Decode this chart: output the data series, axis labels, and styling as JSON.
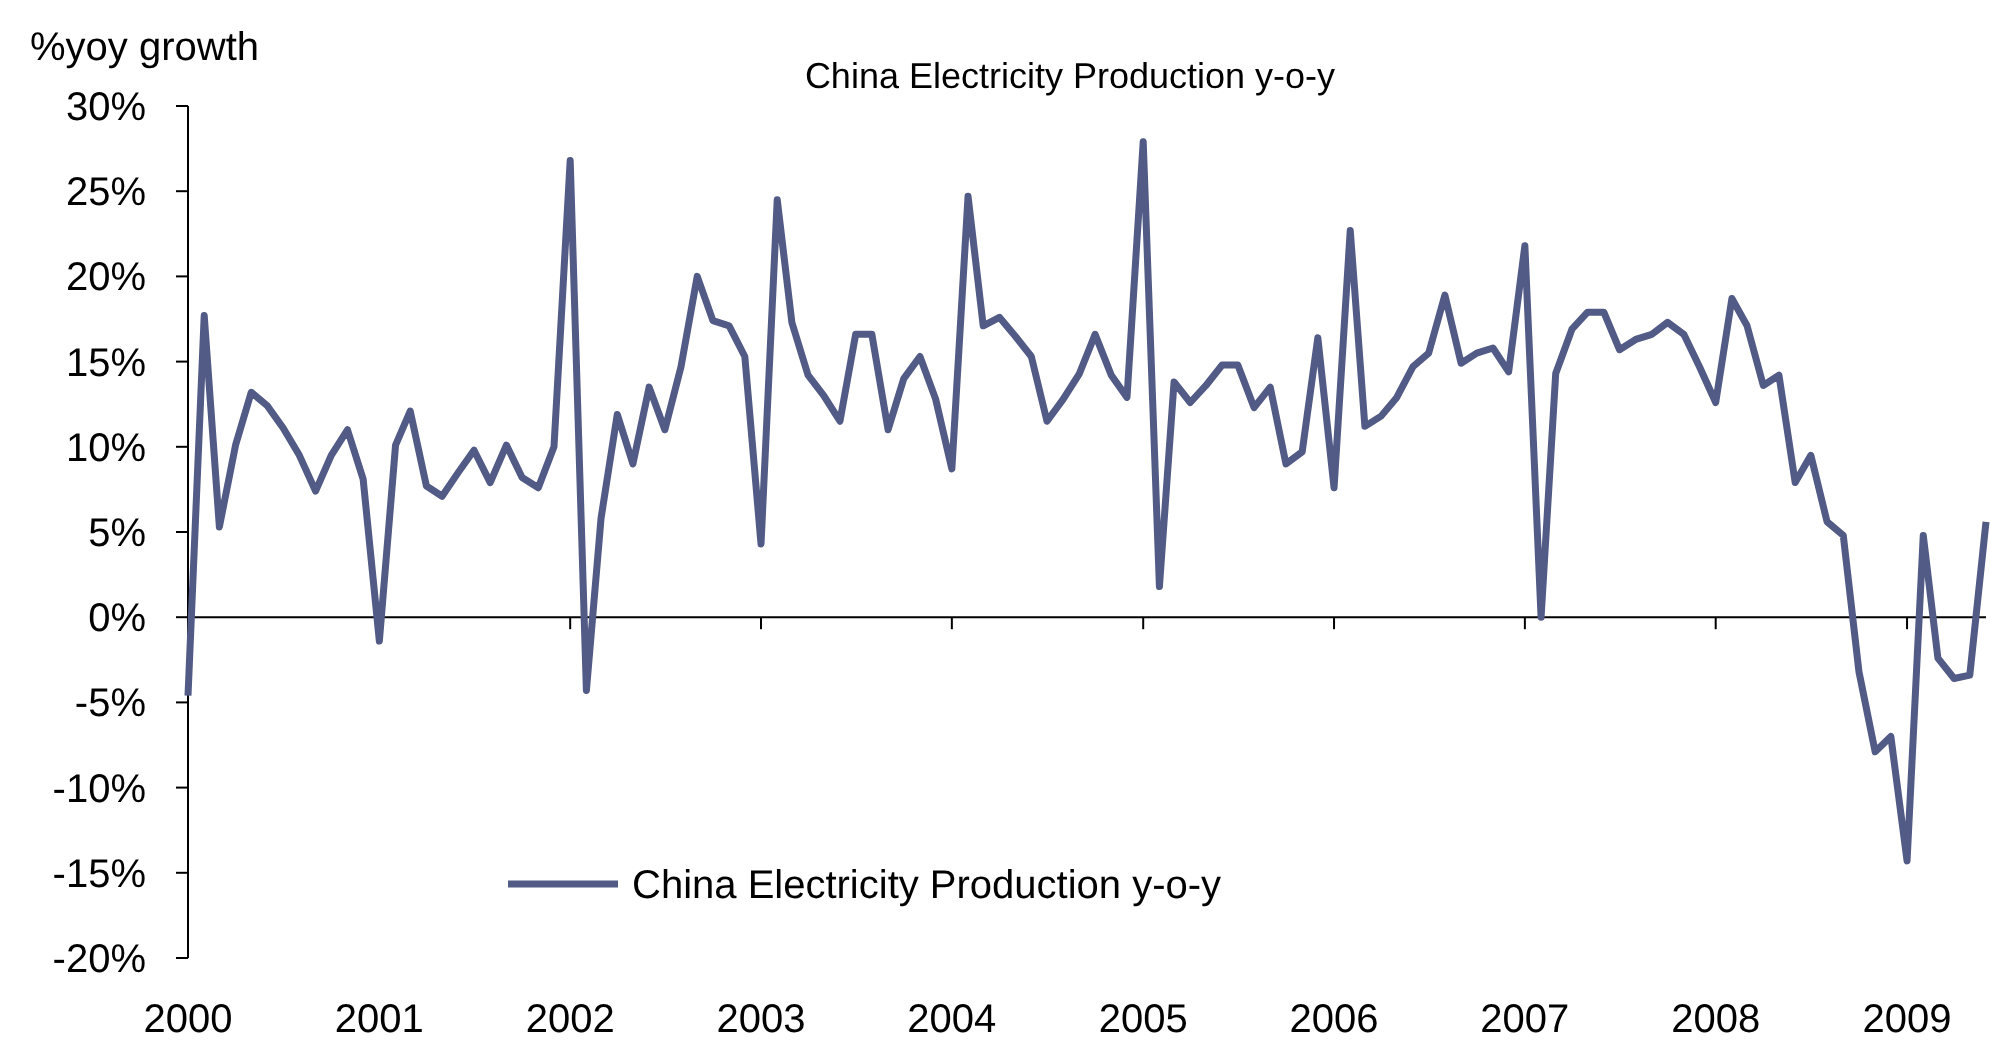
{
  "chart_data": {
    "type": "line",
    "title": "China Electricity Production y-o-y",
    "ylabel": "%yoy growth",
    "xlim": [
      "2000-01",
      "2009-06"
    ],
    "xticks": [
      {
        "value": "2000-01",
        "label": "2000"
      },
      {
        "value": "2001-01",
        "label": "2001"
      },
      {
        "value": "2002-01",
        "label": "2002"
      },
      {
        "value": "2003-01",
        "label": "2003"
      },
      {
        "value": "2004-01",
        "label": "2004"
      },
      {
        "value": "2005-01",
        "label": "2005"
      },
      {
        "value": "2006-01",
        "label": "2006"
      },
      {
        "value": "2007-01",
        "label": "2007"
      },
      {
        "value": "2008-01",
        "label": "2008"
      },
      {
        "value": "2009-01",
        "label": "2009"
      }
    ],
    "ylim": [
      -20,
      30
    ],
    "yticks": [
      {
        "value": -20,
        "label": "-20%"
      },
      {
        "value": -15,
        "label": "-15%"
      },
      {
        "value": -10,
        "label": "-10%"
      },
      {
        "value": -5,
        "label": "-5%"
      },
      {
        "value": 0,
        "label": "0%"
      },
      {
        "value": 5,
        "label": "5%"
      },
      {
        "value": 10,
        "label": "10%"
      },
      {
        "value": 15,
        "label": "15%"
      },
      {
        "value": 20,
        "label": "20%"
      },
      {
        "value": 25,
        "label": "25%"
      },
      {
        "value": 30,
        "label": "30%"
      }
    ],
    "legend": "bottom left",
    "marker": "none",
    "line_style": "solid",
    "x": [
      "2000-01",
      "2000-02",
      "2000-03",
      "2000-04",
      "2000-05",
      "2000-06",
      "2000-07",
      "2000-08",
      "2000-09",
      "2000-10",
      "2000-11",
      "2000-12",
      "2001-01",
      "2001-02",
      "2001-03",
      "2001-04",
      "2001-05",
      "2001-06",
      "2001-07",
      "2001-08",
      "2001-09",
      "2001-10",
      "2001-11",
      "2001-12",
      "2002-01",
      "2002-02",
      "2002-03",
      "2002-04",
      "2002-05",
      "2002-06",
      "2002-07",
      "2002-08",
      "2002-09",
      "2002-10",
      "2002-11",
      "2002-12",
      "2003-01",
      "2003-02",
      "2003-03",
      "2003-04",
      "2003-05",
      "2003-06",
      "2003-07",
      "2003-08",
      "2003-09",
      "2003-10",
      "2003-11",
      "2003-12",
      "2004-01",
      "2004-02",
      "2004-03",
      "2004-04",
      "2004-05",
      "2004-06",
      "2004-07",
      "2004-08",
      "2004-09",
      "2004-10",
      "2004-11",
      "2004-12",
      "2005-01",
      "2005-02",
      "2005-03",
      "2005-04",
      "2005-05",
      "2005-06",
      "2005-07",
      "2005-08",
      "2005-09",
      "2005-10",
      "2005-11",
      "2005-12",
      "2006-01",
      "2006-02",
      "2006-03",
      "2006-04",
      "2006-05",
      "2006-06",
      "2006-07",
      "2006-08",
      "2006-09",
      "2006-10",
      "2006-11",
      "2006-12",
      "2007-01",
      "2007-02",
      "2007-03",
      "2007-04",
      "2007-05",
      "2007-06",
      "2007-07",
      "2007-08",
      "2007-09",
      "2007-10",
      "2007-11",
      "2007-12",
      "2008-01",
      "2008-02",
      "2008-03",
      "2008-04",
      "2008-05",
      "2008-06",
      "2008-07",
      "2008-08",
      "2008-09",
      "2008-10",
      "2008-11",
      "2008-12",
      "2009-01",
      "2009-02",
      "2009-03",
      "2009-04",
      "2009-05",
      "2009-06"
    ],
    "series": [
      {
        "name": "China Electricity Production y-o-y",
        "color": "#525a86",
        "values": [
          -4.6,
          17.7,
          5.3,
          10.1,
          13.2,
          12.4,
          11.1,
          9.5,
          7.4,
          9.5,
          11.0,
          8.1,
          -1.4,
          10.1,
          12.1,
          7.7,
          7.1,
          8.5,
          9.8,
          7.9,
          10.1,
          8.2,
          7.6,
          10.0,
          26.8,
          -4.3,
          5.8,
          11.9,
          9.0,
          13.5,
          11.0,
          14.7,
          20.0,
          17.4,
          17.1,
          15.3,
          4.3,
          24.5,
          17.3,
          14.2,
          13.0,
          11.5,
          16.6,
          16.6,
          11.0,
          14.0,
          15.3,
          12.8,
          8.7,
          24.7,
          17.1,
          17.6,
          16.5,
          15.3,
          11.5,
          12.8,
          14.3,
          16.6,
          14.2,
          12.9,
          27.9,
          1.8,
          13.8,
          12.6,
          13.6,
          14.8,
          14.8,
          12.3,
          13.5,
          9.0,
          9.7,
          16.4,
          7.6,
          22.7,
          11.2,
          11.8,
          12.9,
          14.7,
          15.5,
          18.9,
          14.9,
          15.5,
          15.8,
          14.4,
          21.8,
          0.0,
          14.3,
          16.9,
          17.9,
          17.9,
          15.7,
          16.3,
          16.6,
          17.3,
          16.6,
          14.7,
          12.6,
          18.7,
          17.1,
          13.6,
          14.2,
          7.9,
          9.5,
          5.6,
          4.8,
          -3.2,
          -7.9,
          -7.0,
          -14.3,
          4.8,
          -2.4,
          -3.6,
          -3.4,
          5.6
        ]
      }
    ]
  }
}
